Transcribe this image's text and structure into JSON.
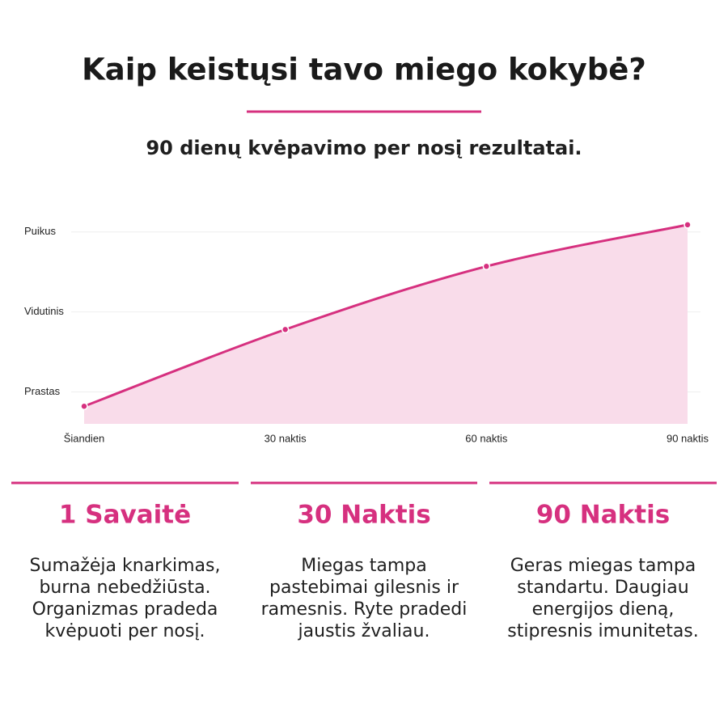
{
  "header": {
    "title": "Kaip keistųsi tavo miego kokybė?",
    "subtitle": "90 dienų kvėpavimo per nosį rezultatai."
  },
  "chart_data": {
    "type": "area",
    "x": [
      0,
      30,
      60,
      90
    ],
    "values": [
      0.82,
      1.78,
      2.57,
      3.09
    ],
    "color": "#d6307f",
    "fill_color": "#f9dcea",
    "xlim": [
      0,
      90
    ],
    "xticks": [
      {
        "value": 0,
        "label": "Šiandien"
      },
      {
        "value": 30,
        "label": "30 naktis"
      },
      {
        "value": 60,
        "label": "60 naktis"
      },
      {
        "value": 90,
        "label": "90 naktis"
      }
    ],
    "ylim": [
      0.6,
      3.2
    ],
    "yticks": [
      {
        "value": 1,
        "label": "Prastas"
      },
      {
        "value": 2,
        "label": "Vidutinis"
      },
      {
        "value": 3,
        "label": "Puikus"
      }
    ],
    "grid": true
  },
  "cards": [
    {
      "title": "1 Savaitė",
      "lines": [
        "Sumažėja knarkimas,",
        "burna nebedžiūsta.",
        "Organizmas pradeda",
        "kvėpuoti per nosį."
      ]
    },
    {
      "title": "30 Naktis",
      "lines": [
        "Miegas tampa",
        "pastebimai gilesnis ir",
        "ramesnis. Ryte pradedi",
        "jaustis žvaliau."
      ]
    },
    {
      "title": "90 Naktis",
      "lines": [
        "Geras miegas tampa",
        "standartu. Daugiau",
        "energijos dieną,",
        "stipresnis imunitetas."
      ]
    }
  ]
}
